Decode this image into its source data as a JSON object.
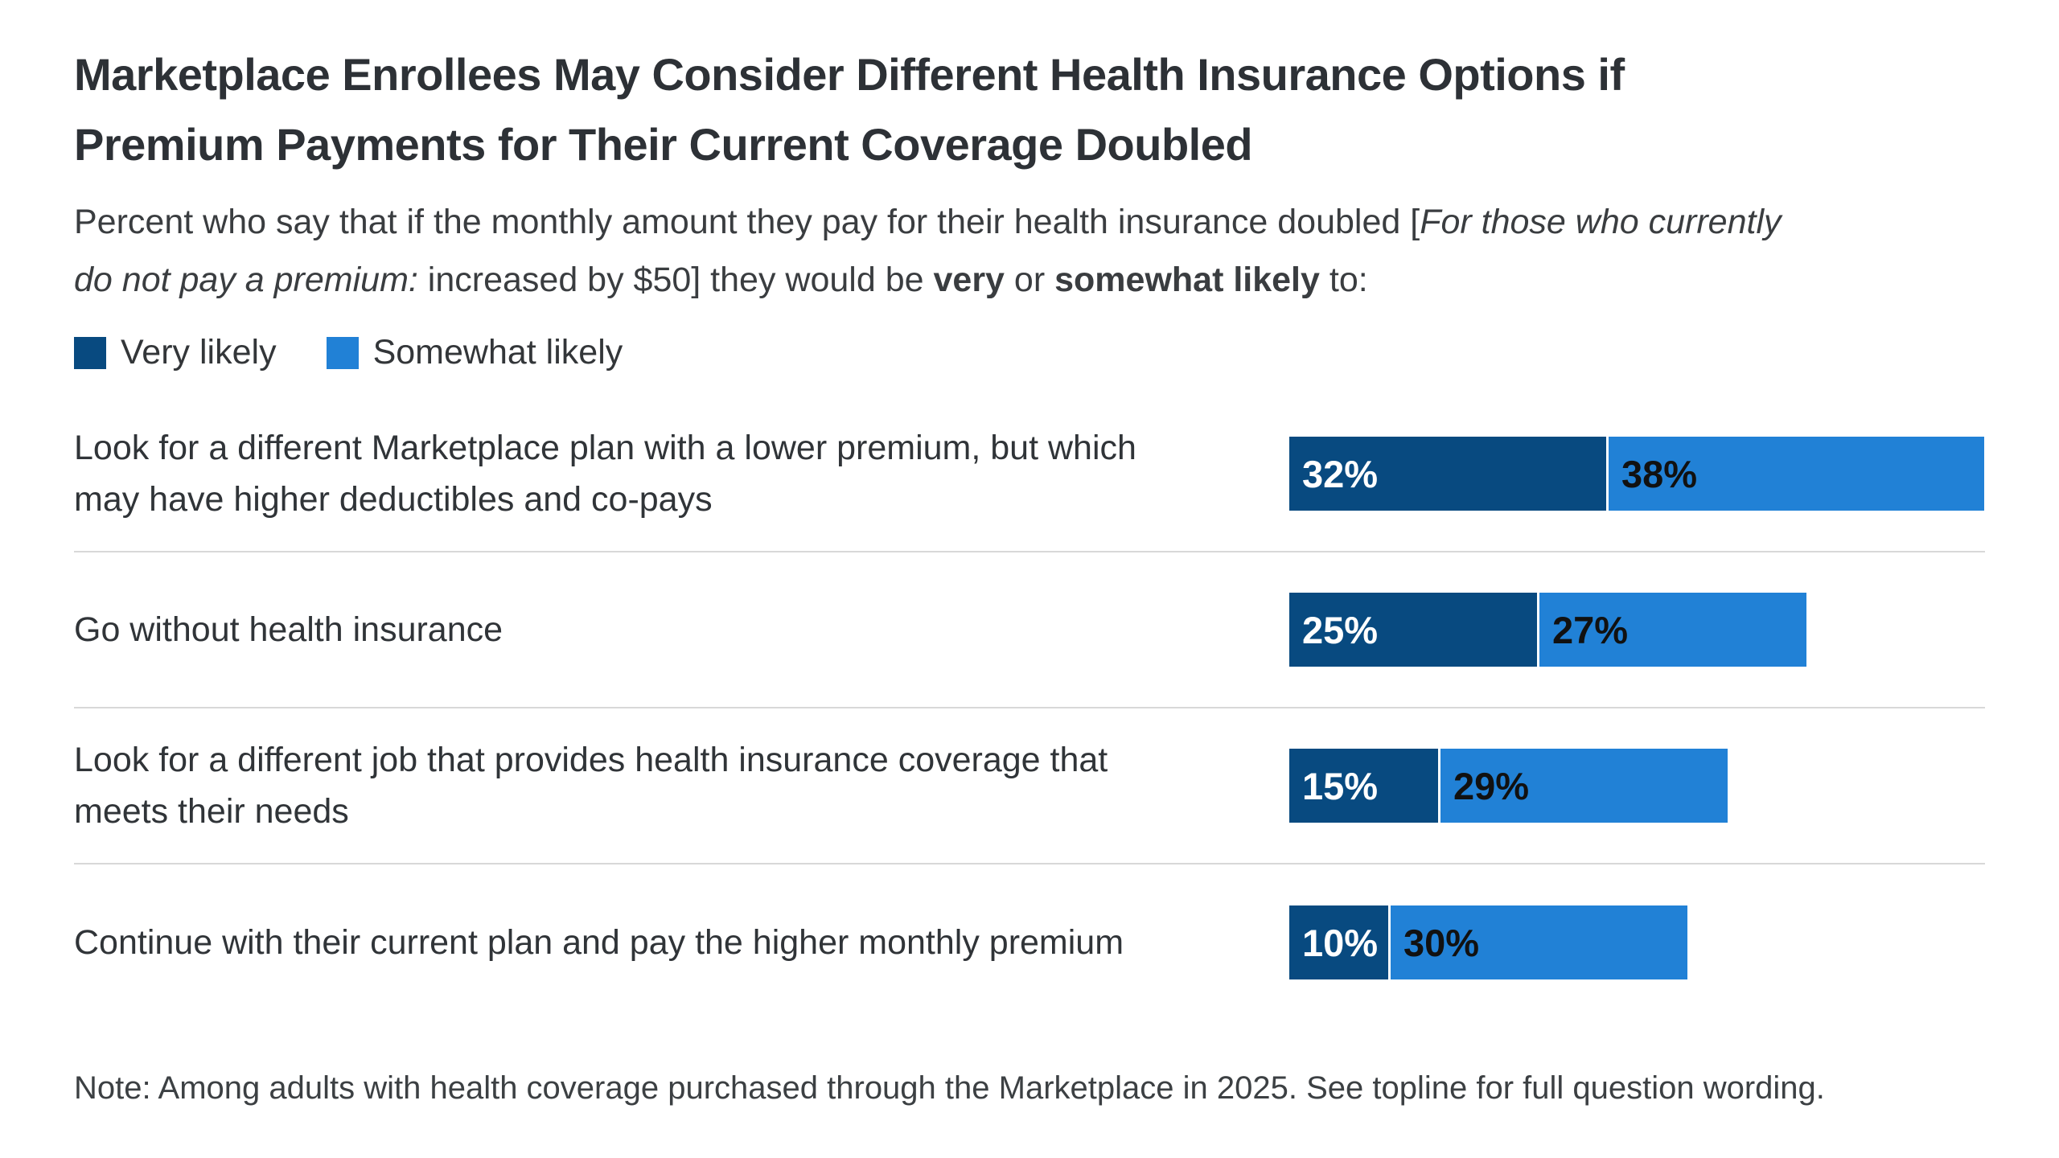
{
  "header": {
    "title_lines": [
      "Marketplace Enrollees May Consider Different Health Insurance Options if",
      "Premium Payments for Their Current Coverage Doubled"
    ],
    "subtitle_parts": [
      {
        "text": "Percent who say that if the monthly amount they pay for their health insurance doubled [",
        "style": "normal"
      },
      {
        "text": "For those who currently do not pay a premium:",
        "style": "italic"
      },
      {
        "text": " increased by $50] they would be ",
        "style": "normal"
      },
      {
        "text": "very",
        "style": "bold"
      },
      {
        "text": " or ",
        "style": "normal"
      },
      {
        "text": "somewhat likely",
        "style": "bold"
      },
      {
        "text": " to:",
        "style": "normal"
      }
    ]
  },
  "legend": [
    {
      "label": "Very likely",
      "color": "#084a80"
    },
    {
      "label": "Somewhat likely",
      "color": "#2181d6"
    }
  ],
  "chart_data": {
    "type": "bar",
    "orientation": "horizontal",
    "stacked": true,
    "unit": "%",
    "grid": false,
    "axis_hidden": true,
    "categories": [
      "Look for a different Marketplace plan with a lower premium, but which may have higher deductibles and co-pays",
      "Go without health insurance",
      "Look for a different job that provides health insurance coverage that meets their needs",
      "Continue with their current plan and pay the higher monthly premium"
    ],
    "series": [
      {
        "name": "Very likely",
        "color": "#084a80",
        "label_color": "#ffffff",
        "values": [
          32,
          25,
          15,
          10
        ]
      },
      {
        "name": "Somewhat likely",
        "color": "#2181d6",
        "label_color": "#111111",
        "values": [
          38,
          27,
          29,
          30
        ]
      }
    ],
    "value_label_format": "{v}%"
  },
  "note": "Note: Among adults with health coverage purchased through the Marketplace in 2025. See topline for full question wording."
}
